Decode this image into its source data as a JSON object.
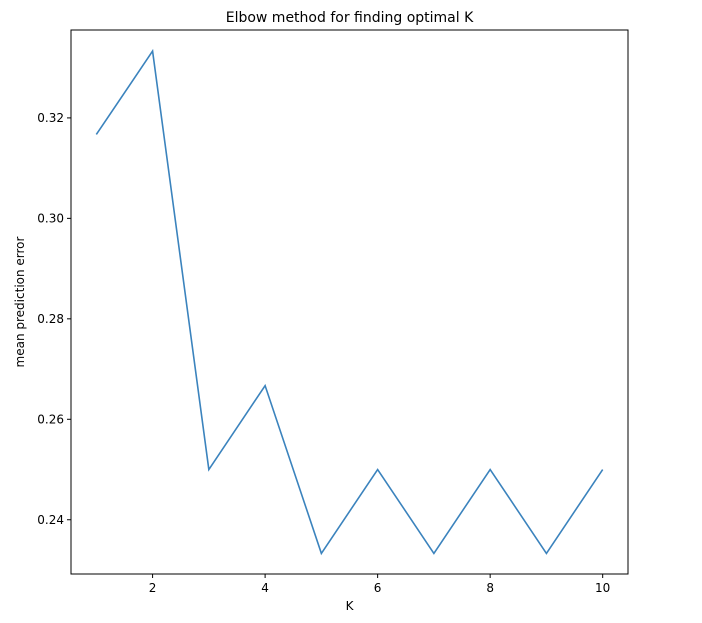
{
  "chart_data": {
    "type": "line",
    "title": "Elbow method for finding optimal K",
    "xlabel": "K",
    "ylabel": "mean prediction error",
    "x": [
      1,
      2,
      3,
      4,
      5,
      6,
      7,
      8,
      9,
      10
    ],
    "series": [
      {
        "values": [
          0.3167,
          0.3333,
          0.25,
          0.2667,
          0.2333,
          0.25,
          0.2333,
          0.25,
          0.2333,
          0.25
        ]
      }
    ],
    "xlim": [
      0.55,
      10.45
    ],
    "ylim": [
      0.2292,
      0.3375
    ],
    "xticks": [
      2,
      4,
      6,
      8,
      10
    ],
    "xtick_labels": [
      "2",
      "4",
      "6",
      "8",
      "10"
    ],
    "yticks": [
      0.24,
      0.26,
      0.28,
      0.3,
      0.32
    ],
    "ytick_labels": [
      "0.24",
      "0.26",
      "0.28",
      "0.30",
      "0.32"
    ],
    "grid": false,
    "line_color": "#3b83bd"
  }
}
